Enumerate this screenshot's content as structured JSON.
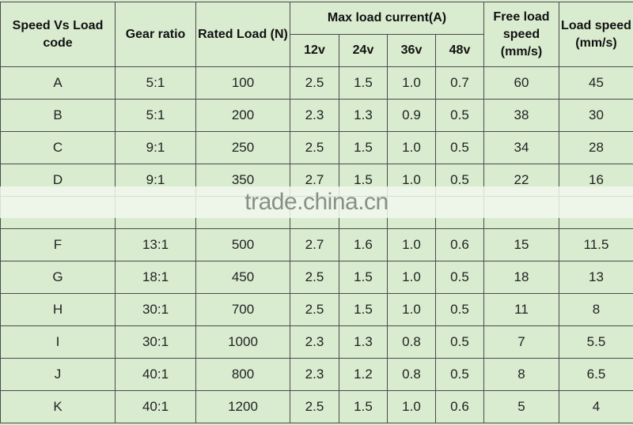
{
  "headers": {
    "code": "Speed Vs Load code",
    "gear_ratio": "Gear ratio",
    "rated_load": "Rated Load (N)",
    "max_current": "Max load current(A)",
    "v12": "12v",
    "v24": "24v",
    "v36": "36v",
    "v48": "48v",
    "free_speed": "Free load speed (mm/s)",
    "load_speed": "Load speed (mm/s)"
  },
  "rows": [
    [
      "A",
      "5:1",
      "100",
      "2.5",
      "1.5",
      "1.0",
      "0.7",
      "60",
      "45"
    ],
    [
      "B",
      "5:1",
      "200",
      "2.3",
      "1.3",
      "0.9",
      "0.5",
      "38",
      "30"
    ],
    [
      "C",
      "9:1",
      "250",
      "2.5",
      "1.5",
      "1.0",
      "0.5",
      "34",
      "28"
    ],
    [
      "D",
      "9:1",
      "350",
      "2.7",
      "1.5",
      "1.0",
      "0.5",
      "22",
      "16"
    ],
    [
      "",
      "",
      "",
      "",
      "",
      "",
      "",
      "",
      ""
    ],
    [
      "F",
      "13:1",
      "500",
      "2.7",
      "1.6",
      "1.0",
      "0.6",
      "15",
      "11.5"
    ],
    [
      "G",
      "18:1",
      "450",
      "2.5",
      "1.5",
      "1.0",
      "0.5",
      "18",
      "13"
    ],
    [
      "H",
      "30:1",
      "700",
      "2.5",
      "1.5",
      "1.0",
      "0.5",
      "11",
      "8"
    ],
    [
      "I",
      "30:1",
      "1000",
      "2.3",
      "1.3",
      "0.8",
      "0.5",
      "7",
      "5.5"
    ],
    [
      "J",
      "40:1",
      "800",
      "2.3",
      "1.2",
      "0.8",
      "0.5",
      "8",
      "6.5"
    ],
    [
      "K",
      "40:1",
      "1200",
      "2.5",
      "1.5",
      "1.0",
      "0.6",
      "5",
      "4"
    ]
  ],
  "watermark": "trade.china.cn",
  "colors": {
    "background": "#d9ecd0",
    "border": "#4a4a4a"
  }
}
